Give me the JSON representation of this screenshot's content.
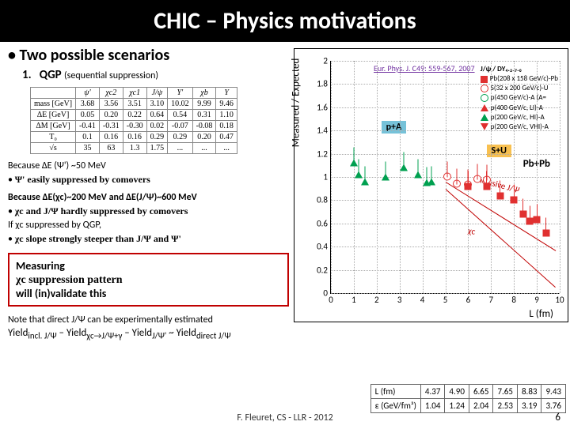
{
  "title": "CHIC – Physics motivations",
  "heading": "Two possible scenarios",
  "item1": "QGP",
  "item1_sub": "(sequential suppression)",
  "params_table": {
    "headers": [
      "",
      "ψ'",
      "χc2",
      "χc1",
      "J/ψ",
      "Υ'",
      "χb",
      "Υ"
    ],
    "rows": [
      [
        "mass [GeV]",
        "3.68",
        "3.56",
        "3.51",
        "3.10",
        "10.02",
        "9.99",
        "9.46"
      ],
      [
        "ΔE [GeV]",
        "0.05",
        "0.20",
        "0.22",
        "0.64",
        "0.54",
        "0.31",
        "1.10"
      ],
      [
        "ΔM [GeV]",
        "-0.41",
        "-0.31",
        "-0.30",
        "0.02",
        "-0.07",
        "-0.08",
        "0.18"
      ],
      [
        "T₀",
        "0.1",
        "0.16",
        "0.16",
        "0.29",
        "0.29",
        "0.20",
        "0.47"
      ],
      [
        "√s",
        "35",
        "63",
        "1.3",
        "1.75",
        "...",
        "...",
        "..."
      ]
    ]
  },
  "because1": "Because ΔE (Ψ') ~50 MeV",
  "bullet1": "Ψ' easily suppressed by comovers",
  "because2_a": "Because ΔE(χc)~200 MeV and ΔE(J/Ψ)~600 MeV",
  "bullet2": "χc and J/Ψ hardly suppressed by comovers",
  "if_line": "If χc suppressed by QGP,",
  "bullet3_a": "χc slope strongly steeper than J/Ψ and Ψ'",
  "box_l1": "Measuring",
  "box_l2": "χc suppression pattern",
  "box_l3": "will (in)validate this",
  "note": "Note that direct J/Ψ can be experimentally estimated",
  "formula_parts": {
    "a": "Yield",
    "sub1": "incl. J/Ψ",
    "m": " – Yield",
    "sub2": "χc→J/Ψ+γ",
    "sub3": "J/Ψ'",
    "t": " ~ Yield",
    "sub4": "direct J/Ψ"
  },
  "footer": "F. Fleuret, CS - LLR - 2012",
  "page": "6",
  "plot": {
    "ylabel": "Measured / Expected",
    "xlabel": "L (fm)",
    "ref": "Eur. Phys. J. C49: 559-567, 2007",
    "ylim": [
      0,
      2.0
    ],
    "xlim": [
      0,
      10
    ],
    "yticks": [
      0,
      0.2,
      0.4,
      0.6,
      0.8,
      1.0,
      1.2,
      1.4,
      1.6,
      1.8,
      2.0
    ],
    "xticks": [
      0,
      1,
      2,
      3,
      4,
      5,
      6,
      7,
      8,
      9,
      10
    ],
    "legend": [
      "J/ψ / DY₄.₂₋₇.₀",
      "Pb(208 x 158 GeV/c)-Pb",
      "S(32 x 200 GeV/c)-U",
      "p(450 GeV/c)-A (A=",
      "p(400 GeV/c, LI)-A",
      "p(200 GeV/c, HI)-A",
      "p(200 GeV/c, VHI)-A"
    ],
    "annot": {
      "pa": "p+A",
      "su": "S+U",
      "pbpb": "Pb+Pb",
      "b1": "Inclusive J/Ψ",
      "b2": "χc"
    },
    "colors": {
      "red": "#e03030",
      "green": "#00a050",
      "band": "#c00000",
      "pa_bg": "#76c2d9",
      "su_bg": "#f8c050"
    },
    "points_pa": [
      {
        "x": 1.0,
        "y": 1.12
      },
      {
        "x": 1.2,
        "y": 1.02
      },
      {
        "x": 1.5,
        "y": 0.96
      },
      {
        "x": 2.4,
        "y": 1.0
      },
      {
        "x": 3.2,
        "y": 1.08
      },
      {
        "x": 3.8,
        "y": 1.02
      },
      {
        "x": 4.2,
        "y": 0.95
      },
      {
        "x": 4.4,
        "y": 0.96
      }
    ],
    "points_su": [
      {
        "x": 5.1,
        "y": 1.0
      },
      {
        "x": 5.5,
        "y": 0.94
      },
      {
        "x": 6.0,
        "y": 0.93
      },
      {
        "x": 6.4,
        "y": 0.98
      },
      {
        "x": 6.8,
        "y": 0.97
      }
    ],
    "points_pbpb": [
      {
        "x": 6.0,
        "y": 0.92
      },
      {
        "x": 6.8,
        "y": 0.92
      },
      {
        "x": 7.4,
        "y": 0.84
      },
      {
        "x": 8.0,
        "y": 0.8
      },
      {
        "x": 8.4,
        "y": 0.68
      },
      {
        "x": 8.7,
        "y": 0.62
      },
      {
        "x": 9.0,
        "y": 0.63
      },
      {
        "x": 9.4,
        "y": 0.52
      }
    ]
  },
  "data_table": {
    "row_labels": [
      "L (fm)",
      "ε (GeV/fm³)"
    ],
    "cols": [
      [
        "4.37",
        "1.04"
      ],
      [
        "4.90",
        "1.24"
      ],
      [
        "6.65",
        "2.04"
      ],
      [
        "7.65",
        "2.53"
      ],
      [
        "8.83",
        "3.19"
      ],
      [
        "9.43",
        "3.76"
      ]
    ]
  }
}
